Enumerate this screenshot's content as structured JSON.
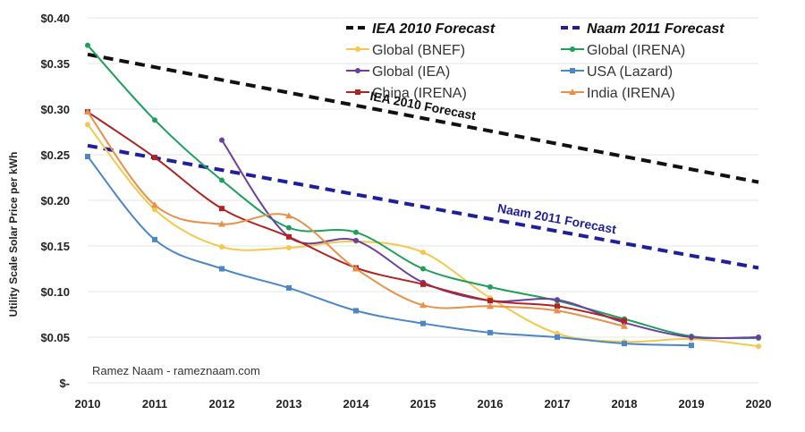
{
  "chart_data": {
    "type": "line",
    "title": "",
    "xlabel": "",
    "ylabel": "Utility Scale Solar Price per kWh",
    "x": [
      2010,
      2011,
      2012,
      2013,
      2014,
      2015,
      2016,
      2017,
      2018,
      2019,
      2020
    ],
    "x_tick_labels": [
      "2010",
      "2011",
      "2012",
      "2013",
      "2014",
      "2015",
      "2016",
      "2017",
      "2018",
      "2019",
      "2020"
    ],
    "ylim": [
      0,
      0.4
    ],
    "y_ticks": [
      0,
      0.05,
      0.1,
      0.15,
      0.2,
      0.25,
      0.3,
      0.35,
      0.4
    ],
    "y_tick_labels": [
      "$-",
      "$0.05",
      "$0.10",
      "$0.15",
      "$0.20",
      "$0.25",
      "$0.30",
      "$0.35",
      "$0.40"
    ],
    "grid": true,
    "legend_position": "top-right",
    "series": [
      {
        "name": "IEA 2010 Forecast",
        "style": "dashed",
        "color": "#111111",
        "bold_label": true,
        "marker": false,
        "x": [
          2010,
          2020
        ],
        "values": [
          0.36,
          0.22
        ]
      },
      {
        "name": "Naam 2011 Forecast",
        "style": "dashed",
        "color": "#1f1f9c",
        "bold_label": true,
        "marker": false,
        "x": [
          2010,
          2020
        ],
        "values": [
          0.26,
          0.126
        ]
      },
      {
        "name": "Global (BNEF)",
        "style": "solid",
        "color": "#f2c94c",
        "marker": "circle",
        "x": [
          2010,
          2011,
          2012,
          2013,
          2014,
          2015,
          2016,
          2017,
          2018,
          2019,
          2020
        ],
        "values": [
          0.283,
          0.19,
          0.149,
          0.148,
          0.155,
          0.143,
          0.093,
          0.054,
          0.045,
          0.048,
          0.04
        ]
      },
      {
        "name": "Global (IRENA)",
        "style": "solid",
        "color": "#1fa05a",
        "marker": "circle",
        "x": [
          2010,
          2011,
          2012,
          2013,
          2014,
          2015,
          2016,
          2017,
          2018,
          2019,
          2020
        ],
        "values": [
          0.37,
          0.288,
          0.222,
          0.17,
          0.165,
          0.125,
          0.105,
          0.09,
          0.07,
          0.051,
          0.049
        ]
      },
      {
        "name": "Global (IEA)",
        "style": "solid",
        "color": "#6a3fa0",
        "marker": "circle",
        "x": [
          2012,
          2013,
          2014,
          2015,
          2016,
          2017,
          2018,
          2019,
          2020
        ],
        "values": [
          0.266,
          0.16,
          0.156,
          0.11,
          0.09,
          0.091,
          0.066,
          0.05,
          0.05
        ]
      },
      {
        "name": "USA (Lazard)",
        "style": "solid",
        "color": "#4a86c8",
        "marker": "square",
        "x": [
          2010,
          2011,
          2012,
          2013,
          2014,
          2015,
          2016,
          2017,
          2018,
          2019
        ],
        "values": [
          0.248,
          0.157,
          0.125,
          0.104,
          0.079,
          0.065,
          0.055,
          0.05,
          0.043,
          0.041
        ]
      },
      {
        "name": "China (IRENA)",
        "style": "solid",
        "color": "#b22222",
        "marker": "square",
        "x": [
          2010,
          2011,
          2012,
          2013,
          2014,
          2015,
          2016,
          2017,
          2018
        ],
        "values": [
          0.297,
          0.247,
          0.191,
          0.16,
          0.126,
          0.108,
          0.09,
          0.084,
          0.068
        ]
      },
      {
        "name": "India (IRENA)",
        "style": "solid",
        "color": "#e8914a",
        "marker": "triangle",
        "x": [
          2010,
          2011,
          2012,
          2013,
          2014,
          2015,
          2016,
          2017,
          2018
        ],
        "values": [
          0.297,
          0.195,
          0.174,
          0.183,
          0.125,
          0.085,
          0.084,
          0.079,
          0.062
        ]
      }
    ],
    "annotations": [
      {
        "text": "IEA 2010 Forecast",
        "color": "#111111"
      },
      {
        "text": "Naam 2011 Forecast",
        "color": "#1f1f9c"
      }
    ],
    "credit": "Ramez Naam - rameznaam.com"
  }
}
